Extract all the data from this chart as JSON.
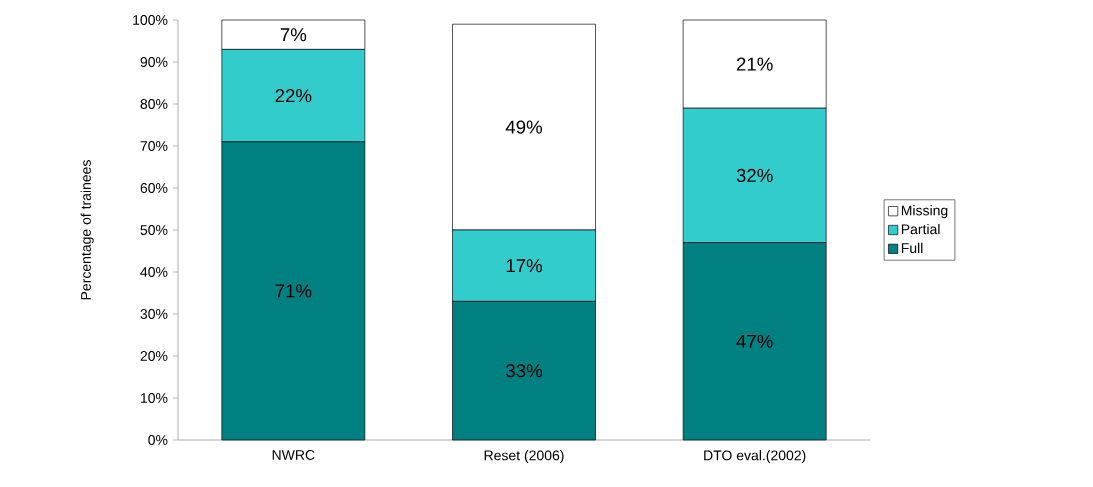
{
  "chart_data": {
    "type": "bar",
    "stacked": true,
    "ylabel": "Percentage of trainees",
    "categories": [
      "NWRC",
      "Reset (2006)",
      "DTO eval.(2002)"
    ],
    "series": [
      {
        "name": "Full",
        "color": "#008080",
        "values": [
          71,
          33,
          47
        ],
        "value_labels": [
          "71%",
          "33%",
          "47%"
        ]
      },
      {
        "name": "Partial",
        "color": "#33cccc",
        "values": [
          22,
          17,
          32
        ],
        "value_labels": [
          "22%",
          "17%",
          "32%"
        ]
      },
      {
        "name": "Missing",
        "color": "#ffffff",
        "values": [
          7,
          49,
          21
        ],
        "value_labels": [
          "7%",
          "49%",
          "21%"
        ]
      }
    ],
    "ylim": [
      0,
      100
    ],
    "yticks": [
      {
        "value": 0,
        "label": "0%"
      },
      {
        "value": 10,
        "label": "10%"
      },
      {
        "value": 20,
        "label": "20%"
      },
      {
        "value": 30,
        "label": "30%"
      },
      {
        "value": 40,
        "label": "40%"
      },
      {
        "value": 50,
        "label": "50%"
      },
      {
        "value": 60,
        "label": "60%"
      },
      {
        "value": 70,
        "label": "70%"
      },
      {
        "value": 80,
        "label": "80%"
      },
      {
        "value": 90,
        "label": "90%"
      },
      {
        "value": 100,
        "label": "100%"
      }
    ],
    "grid": false,
    "legend": "right"
  }
}
